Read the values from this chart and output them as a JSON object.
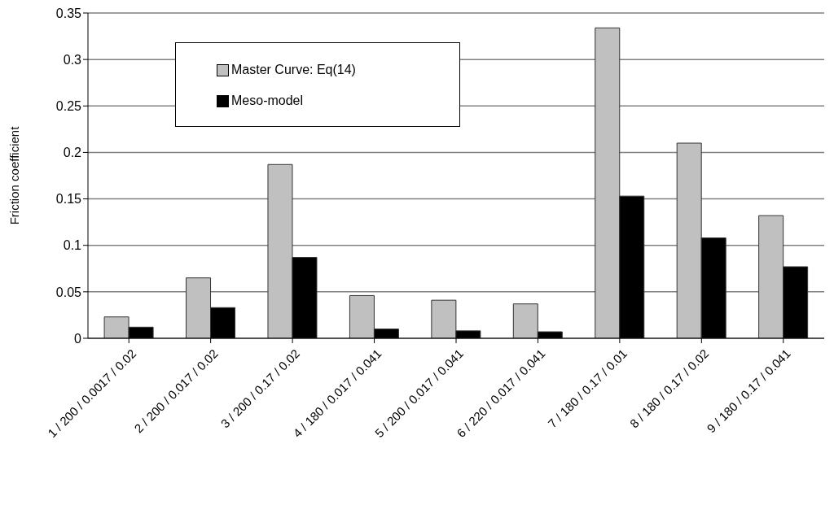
{
  "chart_data": {
    "type": "bar",
    "ylabel": "Friction coefficient",
    "categories": [
      "1 / 200 / 0.0017 / 0.02",
      "2 / 200 / 0.017 / 0.02",
      "3 / 200 / 0.17 / 0.02",
      "4 / 180 / 0.017 / 0.041",
      "5 / 200 / 0.017 / 0.041",
      "6 / 220 / 0.017 / 0.041",
      "7 / 180 / 0.17 / 0.01",
      "8 / 180 / 0.17 / 0.02",
      "9 / 180 / 0.17 / 0.041"
    ],
    "series": [
      {
        "name": "Master Curve: Eq(14)",
        "color": "#c0c0c0",
        "values": [
          0.023,
          0.065,
          0.187,
          0.046,
          0.041,
          0.037,
          0.334,
          0.21,
          0.132
        ]
      },
      {
        "name": "Meso-model",
        "color": "#000000",
        "values": [
          0.012,
          0.033,
          0.087,
          0.01,
          0.008,
          0.007,
          0.153,
          0.108,
          0.077
        ]
      }
    ],
    "ylim": [
      0,
      0.35
    ],
    "yticks": [
      0,
      0.05,
      0.1,
      0.15,
      0.2,
      0.25,
      0.3,
      0.35
    ],
    "grid": "y",
    "legend": "top left"
  }
}
